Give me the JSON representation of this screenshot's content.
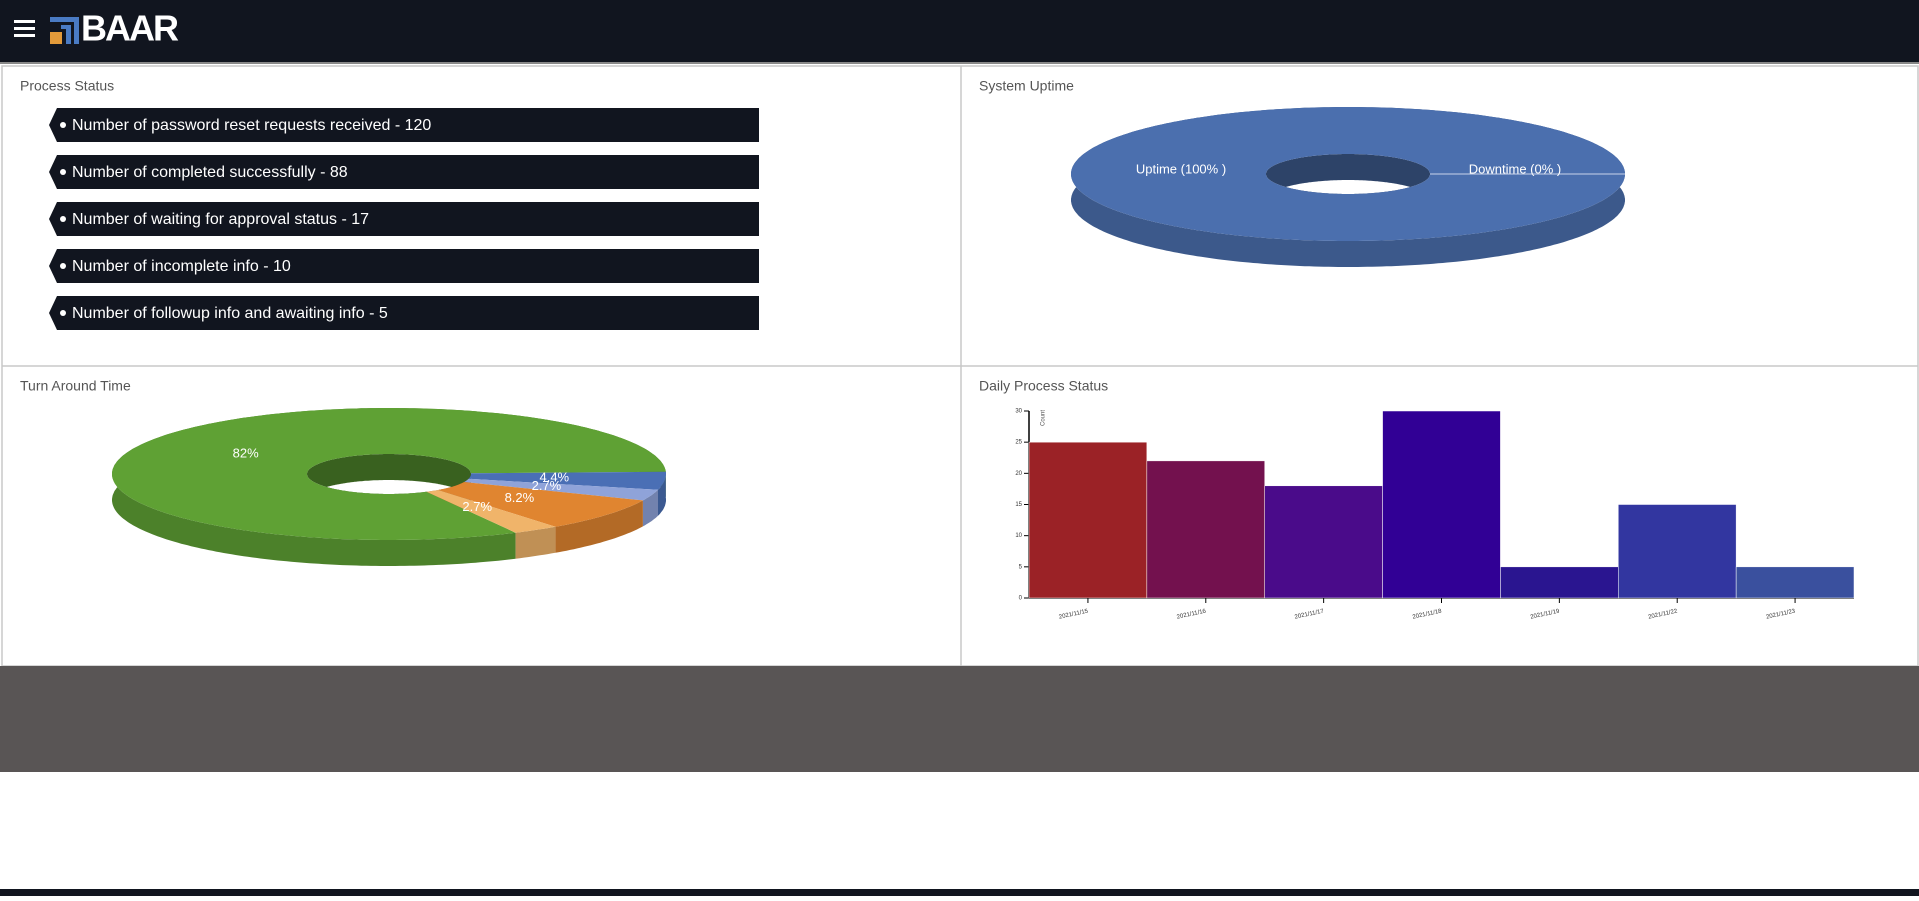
{
  "header": {
    "logo": "BAAR"
  },
  "process_status": {
    "title": "Process Status",
    "items": [
      "Number of password reset requests received - 120",
      "Number of completed successfully - 88",
      "Number of waiting for approval status - 17",
      "Number of incomplete info - 10",
      "Number of followup info and awaiting info - 5"
    ]
  },
  "chart_data": [
    {
      "type": "pie",
      "title": "System Uptime",
      "labels": [
        "Uptime (100% )",
        "Downtime (0% )"
      ],
      "values": [
        100,
        0
      ],
      "colors": [
        "#4b6fae",
        "#4b6fae"
      ]
    },
    {
      "type": "pie",
      "title": "Turn Around Time",
      "values": [
        82,
        4.4,
        2.7,
        8.2,
        2.7
      ],
      "value_labels": [
        "82%",
        "4.4%",
        "2.7%",
        "8.2%",
        "2.7%"
      ],
      "colors": [
        "#5fa134",
        "#4a6fb5",
        "#8fa3d9",
        "#e08530",
        "#f0b46a"
      ]
    },
    {
      "type": "bar",
      "title": "Daily Process Status",
      "y_label": "Count",
      "categories": [
        "2021/11/15",
        "2021/11/16",
        "2021/11/17",
        "2021/11/18",
        "2021/11/19",
        "2021/11/22",
        "2021/11/23"
      ],
      "values": [
        25,
        22,
        18,
        30,
        5,
        15,
        5
      ],
      "colors": [
        "#9b2226",
        "#73114e",
        "#4a0b8a",
        "#310095",
        "#2a1590",
        "#3236a0",
        "#3a509e"
      ],
      "ylim": [
        0,
        30
      ],
      "yticks": [
        0,
        5,
        10,
        15,
        20,
        25,
        30
      ]
    }
  ]
}
